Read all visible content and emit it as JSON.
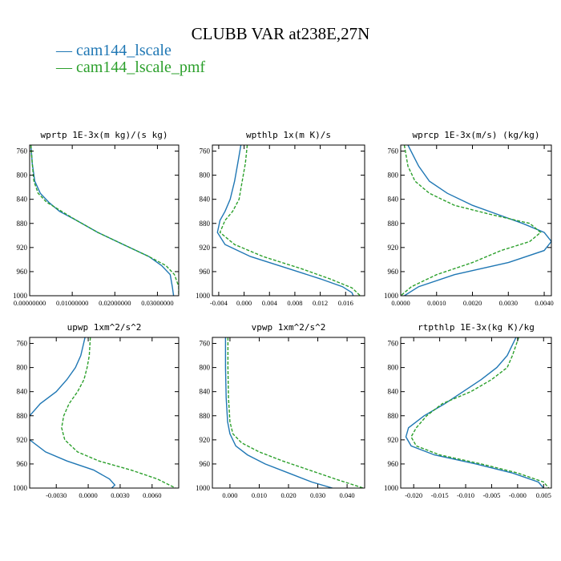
{
  "title": "CLUBB VAR at238E,27N",
  "legend": [
    {
      "name": "cam144_lscale",
      "color": "#1f77b4",
      "dash": "solid"
    },
    {
      "name": "cam144_lscale_pmf",
      "color": "#2ca02c",
      "dash": "dashed"
    }
  ],
  "chart_data": [
    {
      "type": "line",
      "title": "wprtp  1E-3x(m kg)/(s kg)",
      "ylim": [
        1000,
        750
      ],
      "yticks": [
        760,
        800,
        840,
        880,
        920,
        960,
        1000
      ],
      "xlim": [
        0,
        0.035
      ],
      "xticks": [
        0,
        0.01,
        0.02,
        0.03
      ],
      "xtick_labels": [
        "0.00000000",
        "0.01000000",
        "0.02000000",
        "0.03000000"
      ],
      "series": [
        {
          "name": "cam144_lscale",
          "points": [
            [
              0.0003,
              750
            ],
            [
              0.0006,
              780
            ],
            [
              0.0012,
              810
            ],
            [
              0.0025,
              830
            ],
            [
              0.0045,
              845
            ],
            [
              0.007,
              860
            ],
            [
              0.011,
              875
            ],
            [
              0.016,
              895
            ],
            [
              0.022,
              915
            ],
            [
              0.028,
              935
            ],
            [
              0.031,
              950
            ],
            [
              0.033,
              965
            ],
            [
              0.0335,
              985
            ],
            [
              0.0338,
              1000
            ]
          ]
        },
        {
          "name": "cam144_lscale_pmf",
          "points": [
            [
              0.0003,
              750
            ],
            [
              0.0006,
              780
            ],
            [
              0.001,
              810
            ],
            [
              0.002,
              830
            ],
            [
              0.004,
              845
            ],
            [
              0.0075,
              860
            ],
            [
              0.011,
              875
            ],
            [
              0.016,
              895
            ],
            [
              0.022,
              915
            ],
            [
              0.028,
              935
            ],
            [
              0.032,
              950
            ],
            [
              0.034,
              965
            ],
            [
              0.035,
              985
            ],
            [
              0.035,
              1000
            ]
          ]
        }
      ]
    },
    {
      "type": "line",
      "title": "wpthlp  1x(m K)/s",
      "ylim": [
        1000,
        750
      ],
      "yticks": [
        760,
        800,
        840,
        880,
        920,
        960,
        1000
      ],
      "xlim": [
        -0.005,
        0.019
      ],
      "xticks": [
        -0.004,
        0,
        0.004,
        0.008,
        0.012,
        0.016
      ],
      "xtick_labels": [
        "-0.004",
        "0.000",
        "0.004",
        "0.008",
        "0.012",
        "0.016"
      ],
      "series": [
        {
          "name": "cam144_lscale",
          "points": [
            [
              -0.0005,
              750
            ],
            [
              -0.001,
              780
            ],
            [
              -0.0015,
              810
            ],
            [
              -0.0022,
              840
            ],
            [
              -0.003,
              860
            ],
            [
              -0.0038,
              875
            ],
            [
              -0.0042,
              895
            ],
            [
              -0.003,
              915
            ],
            [
              0.001,
              935
            ],
            [
              0.007,
              955
            ],
            [
              0.012,
              972
            ],
            [
              0.0155,
              985
            ],
            [
              0.017,
              995
            ],
            [
              0.0172,
              1000
            ]
          ]
        },
        {
          "name": "cam144_lscale_pmf",
          "points": [
            [
              0.0005,
              750
            ],
            [
              0.0002,
              780
            ],
            [
              -0.0003,
              810
            ],
            [
              -0.0008,
              840
            ],
            [
              -0.0018,
              860
            ],
            [
              -0.003,
              875
            ],
            [
              -0.0038,
              895
            ],
            [
              -0.0015,
              915
            ],
            [
              0.003,
              935
            ],
            [
              0.009,
              955
            ],
            [
              0.0135,
              972
            ],
            [
              0.017,
              987
            ],
            [
              0.0183,
              1000
            ]
          ]
        }
      ]
    },
    {
      "type": "line",
      "title": "wprcp  1E-3x(m/s) (kg/kg)",
      "ylim": [
        1000,
        750
      ],
      "yticks": [
        760,
        800,
        840,
        880,
        920,
        960,
        1000
      ],
      "xlim": [
        0,
        0.0042
      ],
      "xticks": [
        0,
        0.001,
        0.002,
        0.003,
        0.004
      ],
      "xtick_labels": [
        "0.0000",
        "0.0010",
        "0.0020",
        "0.0030",
        "0.0040"
      ],
      "series": [
        {
          "name": "cam144_lscale",
          "points": [
            [
              0.0002,
              750
            ],
            [
              0.0005,
              785
            ],
            [
              0.0008,
              810
            ],
            [
              0.0013,
              830
            ],
            [
              0.002,
              850
            ],
            [
              0.0027,
              865
            ],
            [
              0.0034,
              880
            ],
            [
              0.004,
              895
            ],
            [
              0.0042,
              910
            ],
            [
              0.004,
              925
            ],
            [
              0.003,
              945
            ],
            [
              0.0015,
              965
            ],
            [
              0.0005,
              985
            ],
            [
              0.0001,
              1000
            ]
          ]
        },
        {
          "name": "cam144_lscale_pmf",
          "points": [
            [
              0.0001,
              750
            ],
            [
              0.0002,
              785
            ],
            [
              0.0004,
              810
            ],
            [
              0.0008,
              830
            ],
            [
              0.0015,
              850
            ],
            [
              0.0025,
              865
            ],
            [
              0.0036,
              880
            ],
            [
              0.0039,
              895
            ],
            [
              0.0036,
              910
            ],
            [
              0.0028,
              925
            ],
            [
              0.002,
              945
            ],
            [
              0.001,
              965
            ],
            [
              0.0003,
              985
            ],
            [
              0,
              1000
            ]
          ]
        }
      ]
    },
    {
      "type": "line",
      "title": "upwp  1xm^2/s^2",
      "ylim": [
        1000,
        750
      ],
      "yticks": [
        760,
        800,
        840,
        880,
        920,
        960,
        1000
      ],
      "xlim": [
        -0.0055,
        0.0085
      ],
      "xticks": [
        -0.003,
        0,
        0.003,
        0.006
      ],
      "xtick_labels": [
        "-0.0030",
        "0.0000",
        "0.0030",
        "0.0060"
      ],
      "series": [
        {
          "name": "cam144_lscale",
          "points": [
            [
              -0.0003,
              750
            ],
            [
              -0.0007,
              780
            ],
            [
              -0.0012,
              800
            ],
            [
              -0.002,
              820
            ],
            [
              -0.003,
              840
            ],
            [
              -0.0045,
              860
            ],
            [
              -0.0055,
              880
            ],
            [
              -0.0058,
              900
            ],
            [
              -0.0055,
              920
            ],
            [
              -0.004,
              940
            ],
            [
              -0.002,
              955
            ],
            [
              0.0005,
              970
            ],
            [
              0.002,
              985
            ],
            [
              0.0025,
              995
            ],
            [
              0.0022,
              1000
            ]
          ]
        },
        {
          "name": "cam144_lscale_pmf",
          "points": [
            [
              0.0002,
              750
            ],
            [
              0.0001,
              780
            ],
            [
              -0.0001,
              800
            ],
            [
              -0.0004,
              820
            ],
            [
              -0.001,
              840
            ],
            [
              -0.0018,
              860
            ],
            [
              -0.0023,
              880
            ],
            [
              -0.0025,
              900
            ],
            [
              -0.0022,
              920
            ],
            [
              -0.001,
              940
            ],
            [
              0.001,
              955
            ],
            [
              0.004,
              970
            ],
            [
              0.0065,
              985
            ],
            [
              0.0082,
              1000
            ]
          ]
        }
      ]
    },
    {
      "type": "line",
      "title": "vpwp  1xm^2/s^2",
      "ylim": [
        1000,
        750
      ],
      "yticks": [
        760,
        800,
        840,
        880,
        920,
        960,
        1000
      ],
      "xlim": [
        -0.006,
        0.046
      ],
      "xticks": [
        0,
        0.01,
        0.02,
        0.03,
        0.04
      ],
      "xtick_labels": [
        "0.000",
        "0.010",
        "0.020",
        "0.030",
        "0.040"
      ],
      "series": [
        {
          "name": "cam144_lscale",
          "points": [
            [
              -0.0015,
              750
            ],
            [
              -0.0015,
              800
            ],
            [
              -0.0013,
              850
            ],
            [
              -0.0008,
              890
            ],
            [
              0,
              910
            ],
            [
              0.002,
              930
            ],
            [
              0.006,
              945
            ],
            [
              0.012,
              960
            ],
            [
              0.02,
              975
            ],
            [
              0.028,
              990
            ],
            [
              0.035,
              1000
            ]
          ]
        },
        {
          "name": "cam144_lscale_pmf",
          "points": [
            [
              -0.0007,
              750
            ],
            [
              -0.0007,
              800
            ],
            [
              -0.0005,
              850
            ],
            [
              0,
              890
            ],
            [
              0.001,
              910
            ],
            [
              0.004,
              925
            ],
            [
              0.01,
              940
            ],
            [
              0.018,
              955
            ],
            [
              0.027,
              970
            ],
            [
              0.036,
              985
            ],
            [
              0.0455,
              1000
            ]
          ]
        }
      ]
    },
    {
      "type": "line",
      "title": "rtpthlp  1E-3x(kg K)/kg",
      "ylim": [
        1000,
        750
      ],
      "yticks": [
        760,
        800,
        840,
        880,
        920,
        960,
        1000
      ],
      "xlim": [
        -0.0225,
        0.0065
      ],
      "xticks": [
        -0.02,
        -0.015,
        -0.01,
        -0.005,
        0,
        0.005
      ],
      "xtick_labels": [
        "-0.020",
        "-0.015",
        "-0.010",
        "-0.005",
        "-0.000",
        "0.005"
      ],
      "series": [
        {
          "name": "cam144_lscale",
          "points": [
            [
              -0.0003,
              750
            ],
            [
              -0.002,
              780
            ],
            [
              -0.004,
              800
            ],
            [
              -0.007,
              820
            ],
            [
              -0.0105,
              840
            ],
            [
              -0.014,
              860
            ],
            [
              -0.018,
              880
            ],
            [
              -0.021,
              900
            ],
            [
              -0.0215,
              915
            ],
            [
              -0.0205,
              930
            ],
            [
              -0.016,
              945
            ],
            [
              -0.008,
              960
            ],
            [
              -0.001,
              975
            ],
            [
              0.004,
              990
            ],
            [
              0.005,
              1000
            ]
          ]
        },
        {
          "name": "cam144_lscale_pmf",
          "points": [
            [
              0.0002,
              750
            ],
            [
              -0.001,
              780
            ],
            [
              -0.002,
              800
            ],
            [
              -0.005,
              820
            ],
            [
              -0.009,
              840
            ],
            [
              -0.0145,
              860
            ],
            [
              -0.0175,
              880
            ],
            [
              -0.0195,
              900
            ],
            [
              -0.0205,
              915
            ],
            [
              -0.0195,
              930
            ],
            [
              -0.015,
              945
            ],
            [
              -0.007,
              960
            ],
            [
              0,
              975
            ],
            [
              0.005,
              990
            ],
            [
              0.006,
              1000
            ]
          ]
        }
      ]
    }
  ]
}
